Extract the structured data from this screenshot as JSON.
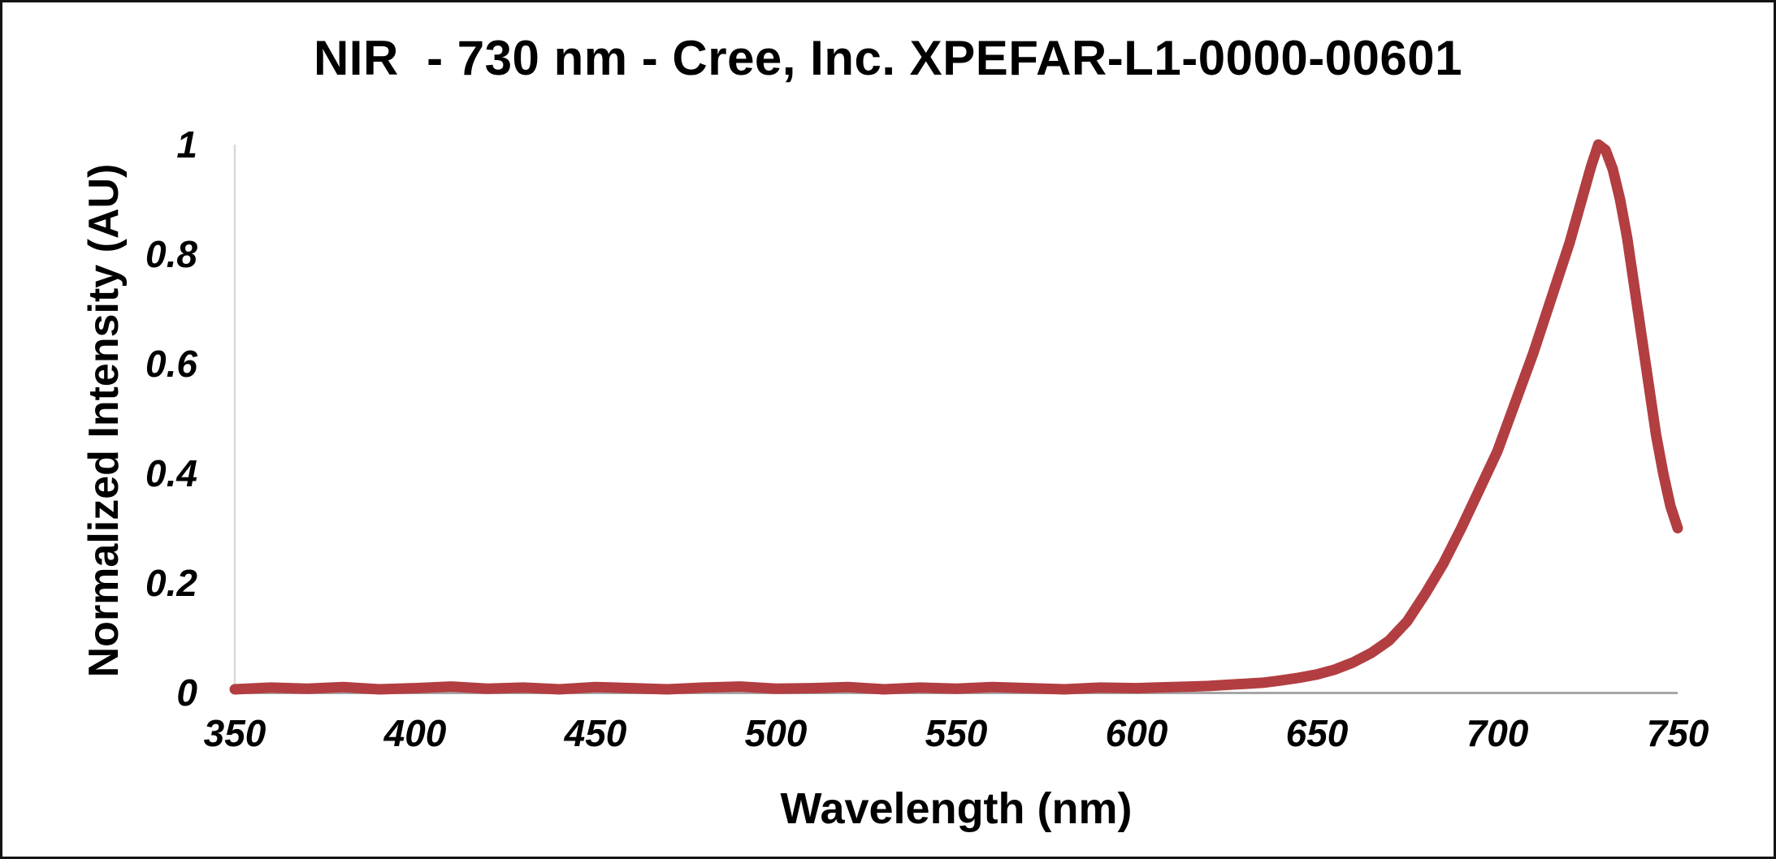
{
  "page": {
    "background": "#ffffff",
    "border_color": "#141414"
  },
  "chart_data": {
    "type": "line",
    "title": "NIR  - 730 nm - Cree, Inc. XPEFAR-L1-0000-00601",
    "xlabel": "Wavelength (nm)",
    "ylabel": "Normalized Intensity (AU)",
    "xlim": [
      350,
      750
    ],
    "ylim": [
      0,
      1
    ],
    "x_ticks": [
      350,
      400,
      450,
      500,
      550,
      600,
      650,
      700,
      750
    ],
    "y_ticks": [
      0,
      0.2,
      0.4,
      0.6,
      0.8,
      1
    ],
    "y_tick_labels": [
      "0",
      "0.2",
      "0.4",
      "0.6",
      "0.8",
      "1"
    ],
    "grid": false,
    "legend": "none",
    "axis": {
      "x_line_color": "#a6a6a6",
      "y_line_color": "#d9d9d9"
    },
    "series": [
      {
        "name": "normalized-intensity-spectrum",
        "color": "#b23e42",
        "stroke_width": 13,
        "peak_wavelength_nm": 728,
        "x": [
          350,
          360,
          370,
          380,
          390,
          400,
          410,
          420,
          430,
          440,
          450,
          460,
          470,
          480,
          490,
          500,
          510,
          520,
          530,
          540,
          550,
          560,
          570,
          580,
          590,
          600,
          605,
          610,
          615,
          620,
          625,
          630,
          635,
          640,
          645,
          650,
          655,
          660,
          665,
          670,
          675,
          680,
          685,
          690,
          695,
          700,
          705,
          710,
          715,
          720,
          723,
          726,
          728,
          730,
          732,
          734,
          736,
          738,
          740,
          742,
          744,
          746,
          748,
          750
        ],
        "y": [
          0.006,
          0.009,
          0.007,
          0.01,
          0.006,
          0.008,
          0.011,
          0.007,
          0.009,
          0.006,
          0.01,
          0.008,
          0.006,
          0.009,
          0.011,
          0.007,
          0.008,
          0.01,
          0.006,
          0.009,
          0.007,
          0.01,
          0.008,
          0.006,
          0.009,
          0.008,
          0.009,
          0.01,
          0.011,
          0.012,
          0.014,
          0.016,
          0.018,
          0.022,
          0.027,
          0.033,
          0.042,
          0.055,
          0.072,
          0.095,
          0.13,
          0.18,
          0.235,
          0.3,
          0.37,
          0.44,
          0.53,
          0.62,
          0.72,
          0.82,
          0.89,
          0.96,
          1.0,
          0.99,
          0.955,
          0.9,
          0.83,
          0.74,
          0.65,
          0.56,
          0.47,
          0.4,
          0.34,
          0.3
        ]
      }
    ]
  }
}
